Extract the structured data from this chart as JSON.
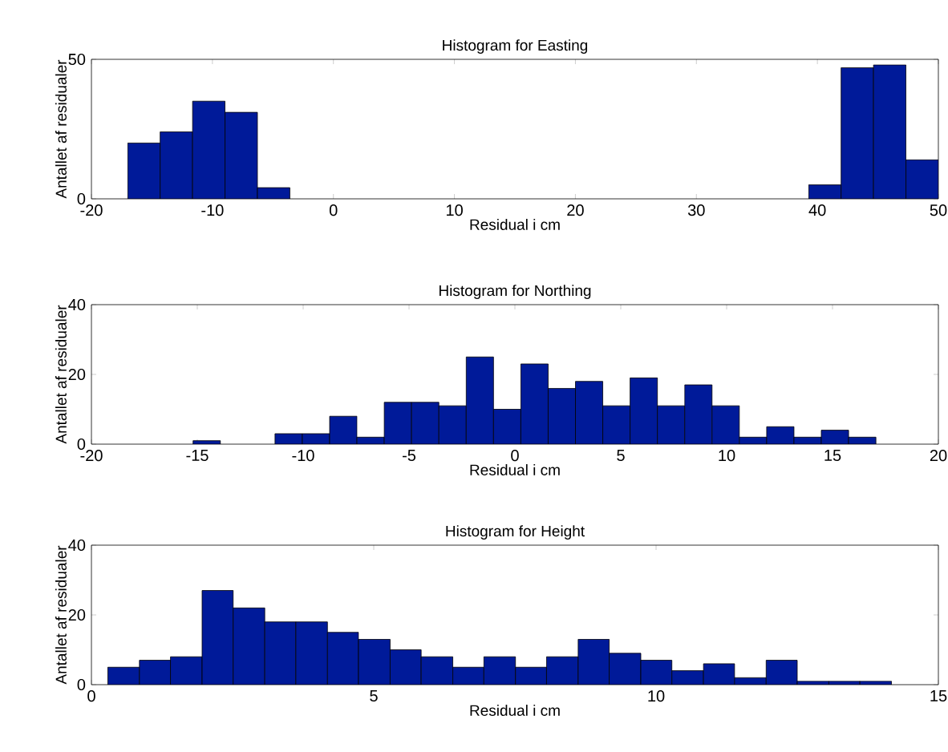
{
  "chart_data": [
    {
      "type": "histogram",
      "title": "Histogram for Easting",
      "xlabel": "Residual i cm",
      "ylabel": "Antallet af residualer",
      "color": "#001a99",
      "bins": [
        -17,
        -14.32,
        -11.64,
        -8.96,
        -6.28,
        -3.6,
        -0.92,
        1.76,
        4.44,
        7.12,
        9.8,
        12.48,
        15.16,
        17.84,
        20.52,
        23.2,
        25.88,
        28.56,
        31.24,
        33.92,
        36.6,
        39.28,
        41.96,
        44.64,
        47.32,
        50
      ],
      "values": [
        20,
        24,
        35,
        31,
        4,
        0,
        0,
        0,
        0,
        0,
        0,
        0,
        0,
        0,
        0,
        0,
        0,
        0,
        0,
        0,
        0,
        5,
        47,
        48,
        14
      ],
      "xlim": [
        -20,
        50
      ],
      "ylim": [
        0,
        50
      ],
      "xticks": [
        -20,
        -10,
        0,
        10,
        20,
        30,
        40,
        50
      ],
      "yticks": [
        0,
        50
      ]
    },
    {
      "type": "histogram",
      "title": "Histogram for Northing",
      "xlabel": "Residual i cm",
      "ylabel": "Antallet af residualer",
      "color": "#001a99",
      "bins": [
        -15.2,
        -13.91,
        -12.62,
        -11.33,
        -10.04,
        -8.75,
        -7.46,
        -6.17,
        -4.88,
        -3.59,
        -2.3,
        -1.01,
        0.28,
        1.57,
        2.86,
        4.15,
        5.44,
        6.73,
        8.02,
        9.31,
        10.6,
        11.89,
        13.18,
        14.47,
        15.76,
        17.05
      ],
      "values": [
        1,
        0,
        0,
        3,
        3,
        8,
        2,
        12,
        12,
        11,
        25,
        10,
        23,
        16,
        18,
        11,
        19,
        11,
        17,
        11,
        2,
        5,
        2,
        4,
        2
      ],
      "xlim": [
        -20,
        20
      ],
      "ylim": [
        0,
        40
      ],
      "xticks": [
        -20,
        -15,
        -10,
        -5,
        0,
        5,
        10,
        15,
        20
      ],
      "yticks": [
        0,
        20,
        40
      ]
    },
    {
      "type": "histogram",
      "title": "Histogram for Height",
      "xlabel": "Residual i cm",
      "ylabel": "Antallet af residualer",
      "color": "#001a99",
      "bins": [
        0.29,
        0.85,
        1.4,
        1.96,
        2.51,
        3.07,
        3.62,
        4.18,
        4.73,
        5.29,
        5.84,
        6.4,
        6.95,
        7.51,
        8.06,
        8.62,
        9.17,
        9.73,
        10.28,
        10.84,
        11.39,
        11.95,
        12.5,
        13.06,
        13.61,
        14.17
      ],
      "values": [
        5,
        7,
        8,
        27,
        22,
        18,
        18,
        15,
        13,
        10,
        8,
        5,
        8,
        5,
        8,
        13,
        9,
        7,
        4,
        6,
        2,
        7,
        1,
        1,
        1
      ],
      "xlim": [
        0,
        15
      ],
      "ylim": [
        0,
        40
      ],
      "xticks": [
        0,
        5,
        10,
        15
      ],
      "yticks": [
        0,
        20,
        40
      ]
    }
  ]
}
